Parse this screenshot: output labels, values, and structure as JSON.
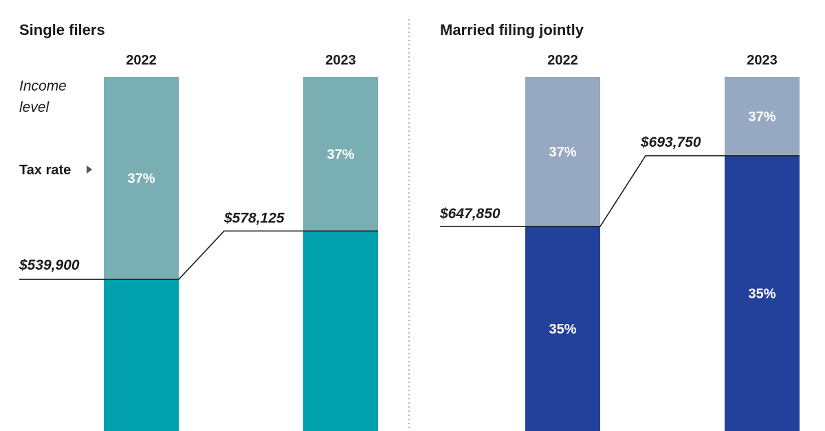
{
  "legend": {
    "income_level_line1": "Income",
    "income_level_line2": "level",
    "tax_rate": "Tax rate"
  },
  "colors": {
    "single_upper": "#79afb2",
    "single_lower": "#00a0ad",
    "married_upper": "#97a8c2",
    "married_lower": "#23419a",
    "line": "#1c1c1c",
    "divider": "#9a9a9a"
  },
  "chart_data": [
    {
      "type": "bar",
      "title": "Single filers",
      "categories": [
        "2022",
        "2023"
      ],
      "thresholds": [
        539900,
        578125
      ],
      "threshold_labels": [
        "$539,900",
        "$578,125"
      ],
      "upper_rate": "37%",
      "lower_rate": "",
      "upper_labels": [
        "37%",
        "37%"
      ],
      "lower_labels": [
        "",
        ""
      ],
      "ylim": [
        420000,
        700000
      ]
    },
    {
      "type": "bar",
      "title": "Married filing jointly",
      "categories": [
        "2022",
        "2023"
      ],
      "thresholds": [
        647850,
        693750
      ],
      "threshold_labels": [
        "$647,850",
        "$693,750"
      ],
      "upper_rate": "37%",
      "lower_rate": "35%",
      "upper_labels": [
        "37%",
        "37%"
      ],
      "lower_labels": [
        "35%",
        "35%"
      ],
      "ylim": [
        515000,
        745000
      ]
    }
  ]
}
